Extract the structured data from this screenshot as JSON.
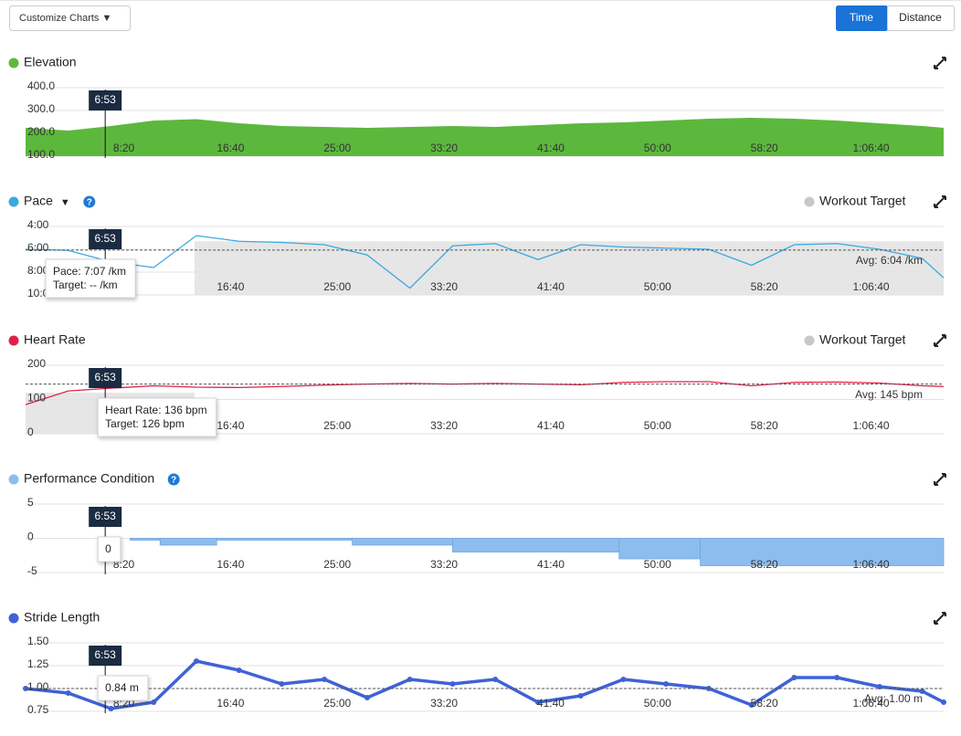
{
  "toolbar": {
    "customize": "Customize Charts ▼",
    "modes": [
      "Time",
      "Distance"
    ],
    "active_mode": "Time"
  },
  "chart_data": [
    {
      "type": "area",
      "title": "Elevation",
      "color": "#5cb83c",
      "x": [
        40,
        240,
        440,
        640,
        840,
        1040,
        1240,
        1440,
        1640,
        1840,
        2040,
        2240,
        2440,
        2640,
        2840,
        3040,
        3240,
        3440,
        3640,
        3840,
        4040,
        4240,
        4340
      ],
      "values": [
        224,
        212,
        232,
        256,
        262,
        244,
        232,
        228,
        224,
        228,
        232,
        228,
        236,
        244,
        248,
        256,
        264,
        268,
        264,
        256,
        244,
        232,
        224
      ],
      "xlim": [
        40,
        4340
      ],
      "xticks": [
        {
          "value": 500,
          "label": "8:20"
        },
        {
          "value": 1000,
          "label": "16:40"
        },
        {
          "value": 1500,
          "label": "25:00"
        },
        {
          "value": 2000,
          "label": "33:20"
        },
        {
          "value": 2500,
          "label": "41:40"
        },
        {
          "value": 3000,
          "label": "50:00"
        },
        {
          "value": 3500,
          "label": "58:20"
        },
        {
          "value": 4000,
          "label": "1:06:40"
        }
      ],
      "ylim": [
        100,
        400
      ],
      "yticks": [
        {
          "value": 100,
          "label": "100.0"
        },
        {
          "value": 200,
          "label": "200.0"
        },
        {
          "value": 300,
          "label": "300.0"
        },
        {
          "value": 400,
          "label": "400.0"
        }
      ],
      "grid": true,
      "cursor": {
        "value": 413,
        "label": "6:53"
      }
    },
    {
      "type": "line",
      "title": "Pace",
      "dropdown": "▼",
      "help": "?",
      "color": "#39a9e0",
      "legend": [
        {
          "name": "Workout Target",
          "color": "#c8c8c8"
        }
      ],
      "target_band": {
        "x": [
          831,
          4340
        ],
        "y": [
          10,
          5.3
        ],
        "color": "#e6e6e6"
      },
      "x": [
        40,
        240,
        440,
        640,
        840,
        1040,
        1240,
        1440,
        1640,
        1840,
        2040,
        2240,
        2440,
        2640,
        2840,
        3040,
        3240,
        3440,
        3640,
        3840,
        4040,
        4240,
        4340
      ],
      "values": [
        6.0,
        6.1,
        7.1,
        7.6,
        4.8,
        5.3,
        5.4,
        5.6,
        6.5,
        9.4,
        5.7,
        5.5,
        6.9,
        5.6,
        5.8,
        5.9,
        6.0,
        7.4,
        5.6,
        5.5,
        6.0,
        6.8,
        8.5
      ],
      "xlim": [
        40,
        4340
      ],
      "xticks": [
        {
          "value": 500,
          "label": "8:20"
        },
        {
          "value": 1000,
          "label": "16:40"
        },
        {
          "value": 1500,
          "label": "25:00"
        },
        {
          "value": 2000,
          "label": "33:20"
        },
        {
          "value": 2500,
          "label": "41:40"
        },
        {
          "value": 3000,
          "label": "50:00"
        },
        {
          "value": 3500,
          "label": "58:20"
        },
        {
          "value": 4000,
          "label": "1:06:40"
        }
      ],
      "ylim": [
        10,
        4
      ],
      "yticks": [
        {
          "value": 4,
          "label": "4:00"
        },
        {
          "value": 6,
          "label": "6:00"
        },
        {
          "value": 8,
          "label": "8:00"
        },
        {
          "value": 10,
          "label": "10:00"
        }
      ],
      "grid": true,
      "avg": {
        "value": 6.067,
        "label": "Avg: 6:04 /km"
      },
      "tooltip": [
        "Pace: 7:07 /km",
        "Target: -- /km"
      ],
      "cursor": {
        "value": 413,
        "label": "6:53"
      }
    },
    {
      "type": "line",
      "title": "Heart Rate",
      "color": "#e0204a",
      "legend": [
        {
          "name": "Workout Target",
          "color": "#c8c8c8"
        }
      ],
      "target_band": {
        "x": [
          40,
          831
        ],
        "y": [
          0,
          120
        ],
        "color": "#e6e6e6"
      },
      "x": [
        40,
        240,
        440,
        640,
        840,
        1040,
        1240,
        1440,
        1640,
        1840,
        2040,
        2240,
        2440,
        2640,
        2840,
        3040,
        3240,
        3440,
        3640,
        3840,
        4040,
        4240,
        4340
      ],
      "values": [
        85,
        125,
        133,
        140,
        136,
        135,
        138,
        142,
        145,
        147,
        145,
        147,
        145,
        143,
        150,
        152,
        152,
        140,
        150,
        151,
        148,
        140,
        138
      ],
      "xlim": [
        40,
        4340
      ],
      "xticks": [
        {
          "value": 500,
          "label": "8:20"
        },
        {
          "value": 1000,
          "label": "16:40"
        },
        {
          "value": 1500,
          "label": "25:00"
        },
        {
          "value": 2000,
          "label": "33:20"
        },
        {
          "value": 2500,
          "label": "41:40"
        },
        {
          "value": 3000,
          "label": "50:00"
        },
        {
          "value": 3500,
          "label": "58:20"
        },
        {
          "value": 4000,
          "label": "1:06:40"
        }
      ],
      "ylim": [
        0,
        200
      ],
      "yticks": [
        0,
        100,
        200
      ],
      "grid": true,
      "avg": {
        "value": 145,
        "label": "Avg: 145 bpm"
      },
      "tooltip": [
        "Heart Rate: 136 bpm",
        "Target: 126 bpm"
      ],
      "cursor": {
        "value": 413,
        "label": "6:53"
      }
    },
    {
      "type": "step",
      "title": "Performance Condition",
      "help": "?",
      "color": "#8cbdee",
      "x": [
        530,
        670,
        935,
        1570,
        2040,
        2820,
        3200,
        4340
      ],
      "values": [
        0,
        -1,
        0,
        -1,
        -2,
        -3,
        -4,
        -4
      ],
      "xlim": [
        40,
        4340
      ],
      "xticks": [
        {
          "value": 500,
          "label": "8:20"
        },
        {
          "value": 1000,
          "label": "16:40"
        },
        {
          "value": 1500,
          "label": "25:00"
        },
        {
          "value": 2000,
          "label": "33:20"
        },
        {
          "value": 2500,
          "label": "41:40"
        },
        {
          "value": 3000,
          "label": "50:00"
        },
        {
          "value": 3500,
          "label": "58:20"
        },
        {
          "value": 4000,
          "label": "1:06:40"
        }
      ],
      "ylim": [
        -5,
        5
      ],
      "yticks": [
        -5,
        0,
        5
      ],
      "grid": true,
      "tooltip": [
        "0"
      ],
      "cursor": {
        "value": 413,
        "label": "6:53"
      }
    },
    {
      "type": "scatter",
      "title": "Stride Length",
      "color": "#3f62d6",
      "x": [
        40,
        240,
        440,
        640,
        840,
        1040,
        1240,
        1440,
        1640,
        1840,
        2040,
        2240,
        2440,
        2640,
        2840,
        3040,
        3240,
        3440,
        3640,
        3840,
        4040,
        4240,
        4340
      ],
      "values": [
        1.0,
        0.95,
        0.78,
        0.85,
        1.3,
        1.2,
        1.05,
        1.1,
        0.9,
        1.1,
        1.05,
        1.1,
        0.85,
        0.92,
        1.1,
        1.05,
        1.0,
        0.82,
        1.12,
        1.12,
        1.02,
        0.97,
        0.85
      ],
      "xlim": [
        40,
        4340
      ],
      "xticks": [
        {
          "value": 500,
          "label": "8:20"
        },
        {
          "value": 1000,
          "label": "16:40"
        },
        {
          "value": 1500,
          "label": "25:00"
        },
        {
          "value": 2000,
          "label": "33:20"
        },
        {
          "value": 2500,
          "label": "41:40"
        },
        {
          "value": 3000,
          "label": "50:00"
        },
        {
          "value": 3500,
          "label": "58:20"
        },
        {
          "value": 4000,
          "label": "1:06:40"
        }
      ],
      "ylim": [
        0.75,
        1.5
      ],
      "yticks": [
        {
          "value": 0.75,
          "label": "0.75"
        },
        {
          "value": 1,
          "label": "1.00"
        },
        {
          "value": 1.25,
          "label": "1.25"
        },
        {
          "value": 1.5,
          "label": "1.50"
        }
      ],
      "grid": true,
      "avg": {
        "value": 1,
        "label": "Avg: 1.00 m"
      },
      "tooltip": [
        "0.84 m"
      ],
      "cursor": {
        "value": 413,
        "label": "6:53"
      }
    }
  ]
}
